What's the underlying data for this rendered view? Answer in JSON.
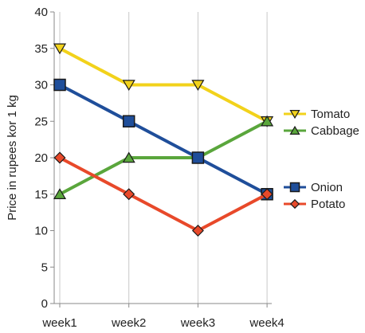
{
  "chart_data": {
    "type": "line",
    "title": "",
    "xlabel": "",
    "ylabel": "Price in rupees kor 1 kg",
    "categories": [
      "week1",
      "week2",
      "week3",
      "week4"
    ],
    "ylim": [
      0,
      40
    ],
    "yticks": [
      0,
      5,
      10,
      15,
      20,
      25,
      30,
      35,
      40
    ],
    "grid": "vertical",
    "legend_position": "right",
    "series": [
      {
        "name": "Tomato",
        "values": [
          35,
          30,
          30,
          25
        ],
        "color": "#f2d21b",
        "marker": "triangle-down"
      },
      {
        "name": "Cabbage",
        "values": [
          15,
          20,
          20,
          25
        ],
        "color": "#5aa63c",
        "marker": "triangle-up"
      },
      {
        "name": "Onion",
        "values": [
          30,
          25,
          20,
          15
        ],
        "color": "#1f4e9a",
        "marker": "square"
      },
      {
        "name": "Potato",
        "values": [
          20,
          15,
          10,
          15
        ],
        "color": "#e8492a",
        "marker": "diamond"
      }
    ]
  }
}
